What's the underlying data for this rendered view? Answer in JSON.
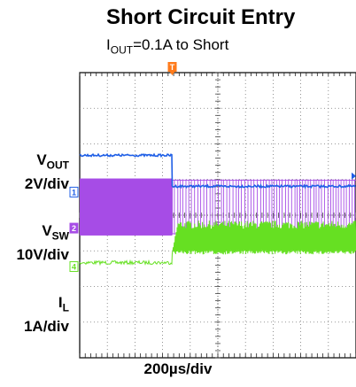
{
  "chart_data": {
    "type": "line",
    "title": "Short Circuit Entry",
    "subtitle_prefix": "I",
    "subtitle_sub": "OUT",
    "subtitle_suffix": "=0.1A to Short",
    "time_scale": "200µs/div",
    "x_divisions": 10,
    "y_divisions": 8,
    "trigger_label": "T",
    "event_time_div": 3.35,
    "series": [
      {
        "name_main": "V",
        "name_sub": "OUT",
        "scale": "2V/div",
        "marker": "1",
        "color": "#1f5fe6",
        "before_div": 1.68,
        "after_div": 0.81
      },
      {
        "name_main": "V",
        "name_sub": "SW",
        "scale": "10V/div",
        "marker": "2",
        "color": "#a64ce6",
        "high_div": 0.98,
        "low_div": -0.52
      },
      {
        "name_main": "I",
        "name_sub": "L",
        "scale": "1A/div",
        "marker": "4",
        "color": "#66e022",
        "before_div": -1.33,
        "after_low_div": -1.05,
        "after_high_div": -0.15
      }
    ]
  }
}
